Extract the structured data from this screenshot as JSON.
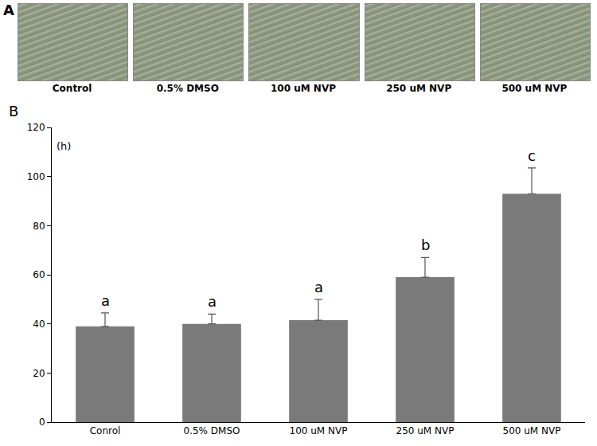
{
  "panel_a": {
    "label": "A",
    "captions": [
      "Control",
      "0.5% DMSO",
      "100 uM NVP",
      "250 uM NVP",
      "500 uM NVP"
    ]
  },
  "chart_data": {
    "type": "bar",
    "panel_label": "B",
    "y_label": "(h)",
    "categories": [
      "Conrol",
      "0.5% DMSO",
      "100 uM NVP",
      "250 uM NVP",
      "500 uM NVP"
    ],
    "values": [
      39,
      40,
      41.5,
      59,
      93
    ],
    "errors": [
      5.5,
      4,
      8.5,
      8,
      10.5
    ],
    "annotations": [
      "a",
      "a",
      "a",
      "b",
      "c"
    ],
    "color": "#7a7a7a",
    "ylim": [
      0,
      120
    ],
    "yticks": [
      0,
      20,
      40,
      60,
      80,
      100,
      120
    ],
    "grid": false
  }
}
